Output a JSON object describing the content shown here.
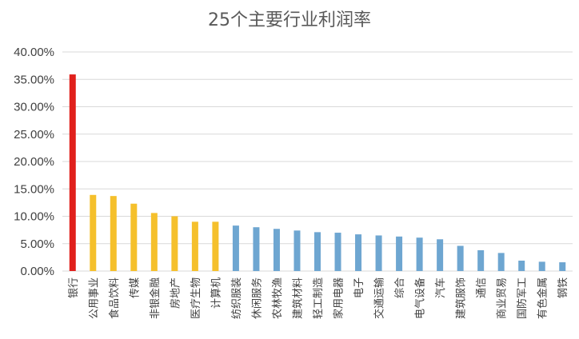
{
  "chart_data": {
    "type": "bar",
    "title": "25个主要行业利润率",
    "xlabel": "",
    "ylabel": "",
    "ylim": [
      0,
      0.4
    ],
    "ytick_values": [
      0,
      0.05,
      0.1,
      0.15,
      0.2,
      0.25,
      0.3,
      0.35,
      0.4
    ],
    "ytick_labels": [
      "0.00%",
      "5.00%",
      "10.00%",
      "15.00%",
      "20.00%",
      "25.00%",
      "30.00%",
      "35.00%",
      "40.00%"
    ],
    "grid": true,
    "categories": [
      "银行",
      "公用事业",
      "食品饮料",
      "传媒",
      "非银金融",
      "房地产",
      "医疗生物",
      "计算机",
      "纺织服装",
      "休闲服务",
      "农林牧渔",
      "建筑材料",
      "轻工制造",
      "家用电器",
      "电子",
      "交通运输",
      "综合",
      "电气设备",
      "汽车",
      "建筑服饰",
      "通信",
      "商业贸易",
      "国防军工",
      "有色金属",
      "钢铁"
    ],
    "values": [
      0.359,
      0.139,
      0.137,
      0.123,
      0.106,
      0.1,
      0.09,
      0.09,
      0.083,
      0.08,
      0.077,
      0.074,
      0.071,
      0.07,
      0.067,
      0.065,
      0.063,
      0.061,
      0.058,
      0.046,
      0.038,
      0.033,
      0.019,
      0.017,
      0.016
    ],
    "colors": [
      "#e0201c",
      "#f5c02c",
      "#f5c02c",
      "#f5c02c",
      "#f5c02c",
      "#f5c02c",
      "#f5c02c",
      "#f5c02c",
      "#6ea6d1",
      "#6ea6d1",
      "#6ea6d1",
      "#6ea6d1",
      "#6ea6d1",
      "#6ea6d1",
      "#6ea6d1",
      "#6ea6d1",
      "#6ea6d1",
      "#6ea6d1",
      "#6ea6d1",
      "#6ea6d1",
      "#6ea6d1",
      "#6ea6d1",
      "#6ea6d1",
      "#6ea6d1",
      "#6ea6d1"
    ],
    "color_groups": {
      "highest": "#e0201c",
      "high": "#f5c02c",
      "others": "#6ea6d1"
    }
  }
}
